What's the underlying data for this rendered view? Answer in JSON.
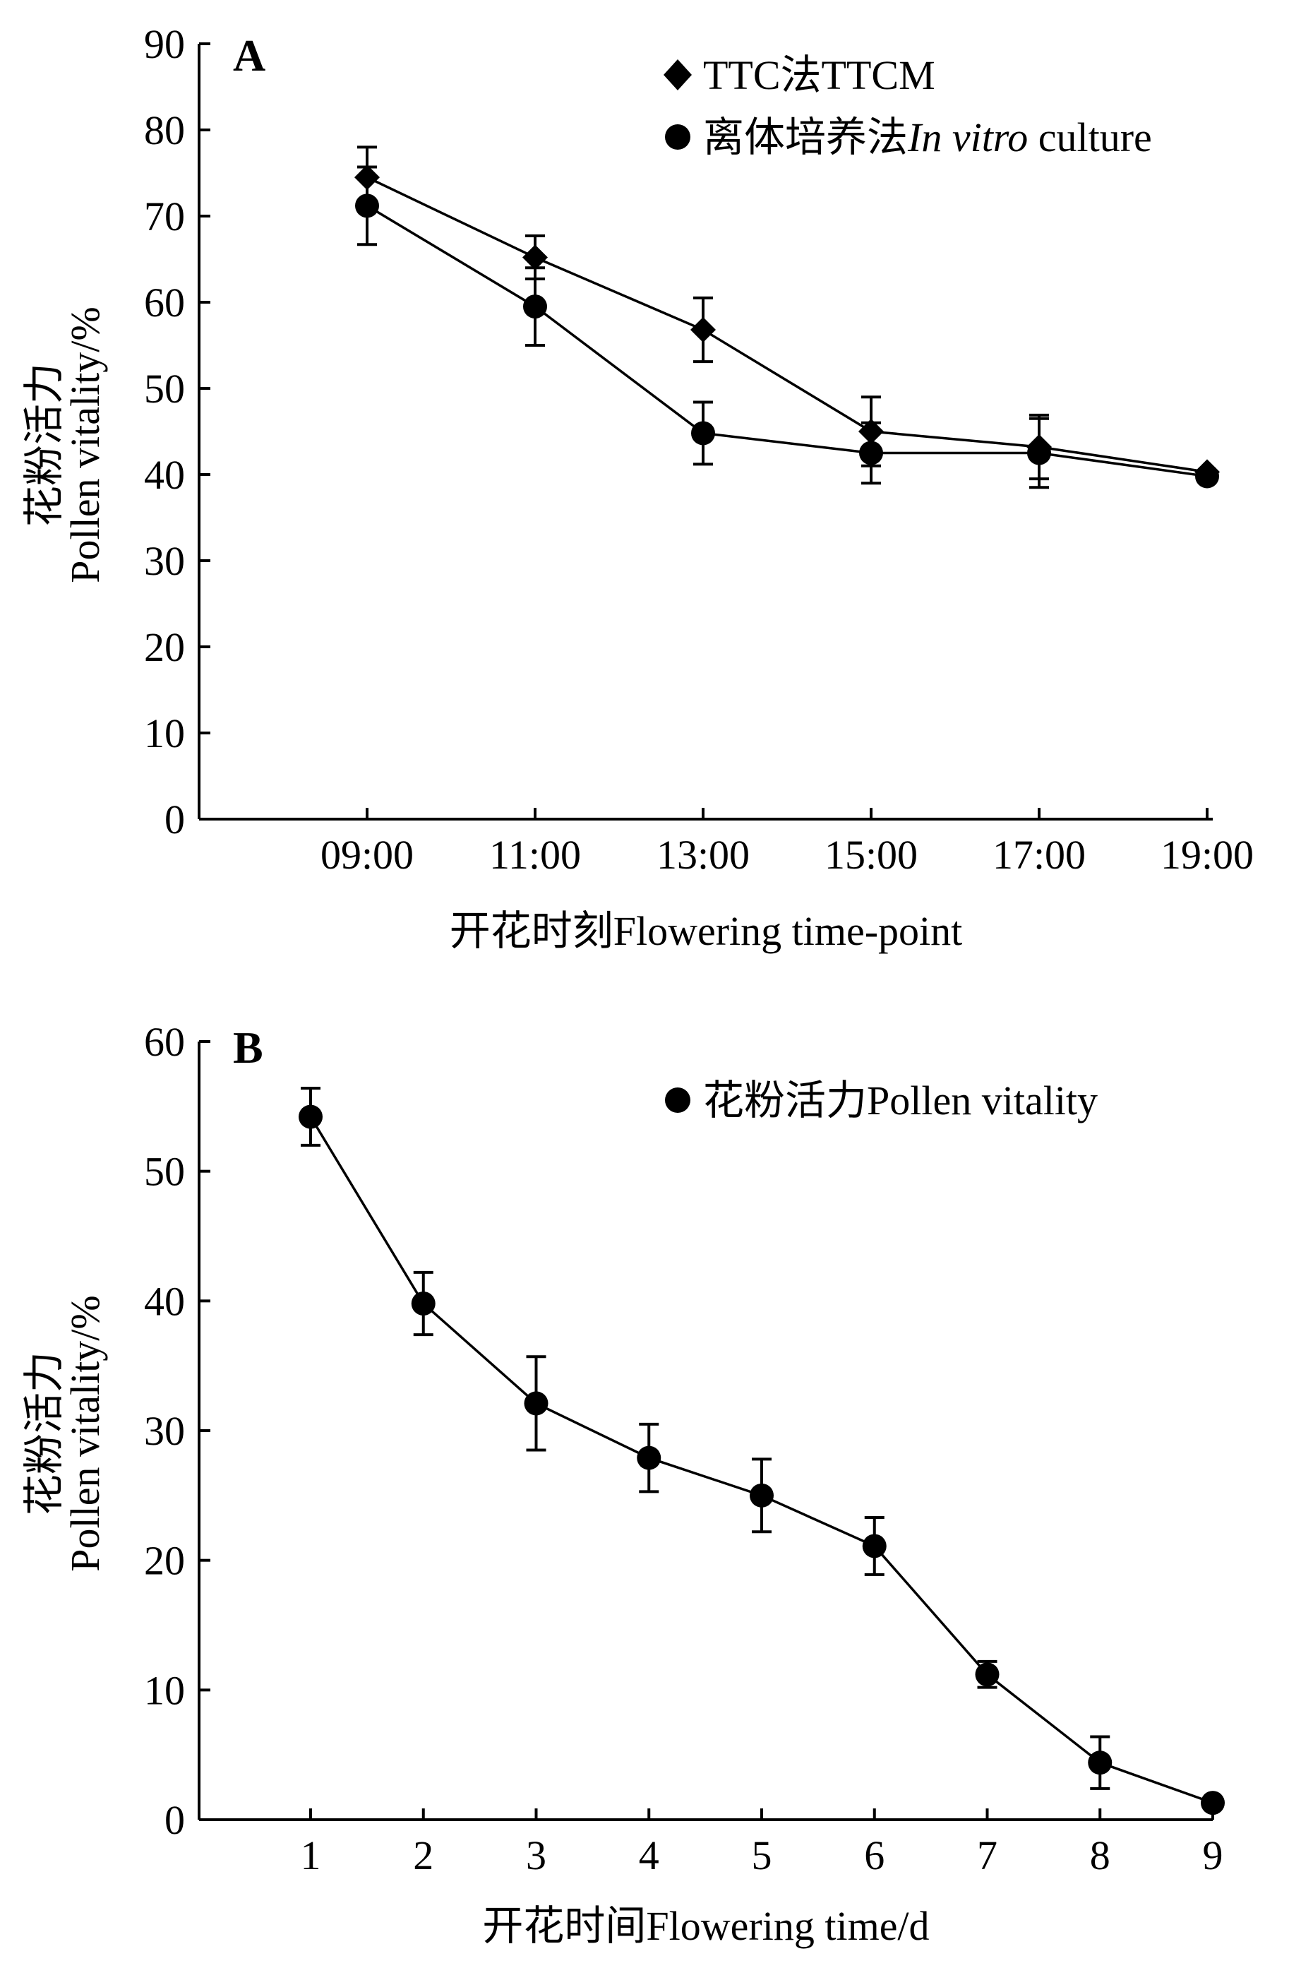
{
  "chart_data": [
    {
      "type": "line",
      "panel_label": "A",
      "categories": [
        "09:00",
        "11:00",
        "13:00",
        "15:00",
        "17:00",
        "19:00"
      ],
      "series": [
        {
          "name": "TTC法TTCM",
          "marker": "diamond",
          "values": [
            74.5,
            65.2,
            56.8,
            45.0,
            43.2,
            40.3
          ],
          "errors": [
            3.5,
            2.5,
            3.7,
            4.0,
            3.7,
            0
          ]
        },
        {
          "name_prefix": "离体培养法",
          "name_italic": "In vitro",
          "name_suffix": " culture",
          "marker": "circle",
          "values": [
            71.2,
            59.5,
            44.8,
            42.5,
            42.5,
            39.8
          ],
          "errors": [
            4.5,
            4.5,
            3.6,
            3.5,
            4.0,
            0
          ]
        }
      ],
      "ylabel_line1": "花粉活力",
      "ylabel_line2": "Pollen vitality/%",
      "xlabel": "开花时刻Flowering time-point",
      "ylim": [
        0,
        90
      ],
      "yticks": [
        0,
        10,
        20,
        30,
        40,
        50,
        60,
        70,
        80,
        90
      ],
      "legend_position": "top-right",
      "grid": false
    },
    {
      "type": "line",
      "panel_label": "B",
      "categories": [
        "1",
        "2",
        "3",
        "4",
        "5",
        "6",
        "7",
        "8",
        "9"
      ],
      "series": [
        {
          "name": "花粉活力Pollen vitality",
          "marker": "circle",
          "values": [
            54.2,
            39.8,
            32.1,
            27.9,
            25.0,
            21.1,
            11.2,
            4.4,
            1.3
          ],
          "errors": [
            2.2,
            2.4,
            3.6,
            2.6,
            2.8,
            2.2,
            1.0,
            2.0,
            0
          ]
        }
      ],
      "ylabel_line1": "花粉活力",
      "ylabel_line2": "Pollen vitality/%",
      "xlabel": "开花时间Flowering time/d",
      "ylim": [
        0,
        60
      ],
      "yticks": [
        0,
        10,
        20,
        30,
        40,
        50,
        60
      ],
      "legend_position": "top-right",
      "grid": false
    }
  ]
}
